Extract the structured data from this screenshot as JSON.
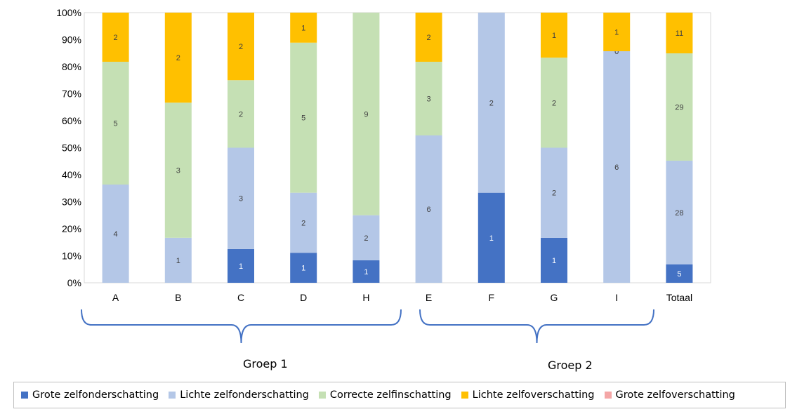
{
  "chart_data": {
    "type": "bar",
    "stacked": "percent",
    "categories": [
      "A",
      "B",
      "C",
      "D",
      "H",
      "E",
      "F",
      "G",
      "I",
      "Totaal"
    ],
    "y_ticks": [
      "0%",
      "10%",
      "20%",
      "30%",
      "40%",
      "50%",
      "60%",
      "70%",
      "80%",
      "90%",
      "100%"
    ],
    "ylim": [
      0,
      100
    ],
    "series": [
      {
        "name": "Grote zelfonderschatting",
        "color": "#4472c4",
        "values": [
          0,
          0,
          1,
          1,
          1,
          0,
          1,
          1,
          0,
          5
        ]
      },
      {
        "name": "Lichte zelfonderschatting",
        "color": "#b4c7e7",
        "values": [
          4,
          1,
          3,
          2,
          2,
          6,
          2,
          2,
          6,
          28
        ]
      },
      {
        "name": "Correcte zelfinschatting",
        "color": "#c5e0b4",
        "values": [
          5,
          3,
          2,
          5,
          9,
          3,
          0,
          2,
          0,
          29
        ]
      },
      {
        "name": "Lichte zelfoverschatting",
        "color": "#ffc000",
        "values": [
          2,
          2,
          2,
          1,
          0,
          2,
          0,
          1,
          1,
          11
        ]
      },
      {
        "name": "Grote zelfoverschatting",
        "color": "#f4a6a6",
        "values": [
          0,
          0,
          0,
          0,
          0,
          0,
          0,
          0,
          0,
          0
        ]
      }
    ],
    "shown_labels": [
      [
        "",
        "",
        "1",
        "1",
        "1",
        "",
        "1",
        "1",
        "",
        "5"
      ],
      [
        "4",
        "1",
        "3",
        "2",
        "2",
        "6",
        "2",
        "2",
        "6",
        "28"
      ],
      [
        "5",
        "3",
        "2",
        "5",
        "9",
        "3",
        "",
        "2",
        "0",
        "29"
      ],
      [
        "2",
        "2",
        "2",
        "1",
        "",
        "2",
        "",
        "1",
        "1",
        "11"
      ],
      [
        "",
        "",
        "",
        "",
        "",
        "",
        "",
        "",
        "",
        ""
      ]
    ],
    "groups": [
      {
        "label": "Groep 1",
        "categories": [
          "A",
          "B",
          "C",
          "D",
          "H"
        ]
      },
      {
        "label": "Groep 2",
        "categories": [
          "E",
          "F",
          "G",
          "I"
        ]
      }
    ],
    "grid": false,
    "legend_position": "bottom"
  }
}
